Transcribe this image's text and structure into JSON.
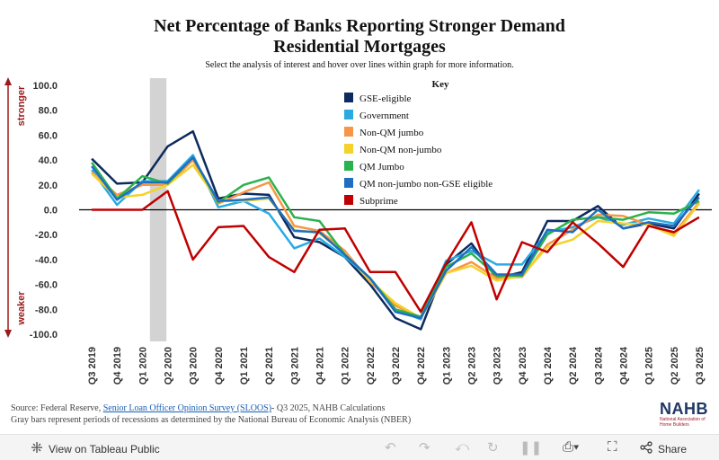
{
  "title_line1": "Net Percentage of Banks Reporting Stronger Demand",
  "title_line2": "Residential Mortgages",
  "subtitle": "Select the analysis of interest and hover over lines within graph for more information.",
  "source_prefix": "Source: Federal Reserve, ",
  "source_link": "Senior Loan Officer Opinion Survey (SLOOS)",
  "source_suffix": "- Q3 2025, NAHB Calculations",
  "source_note": "Gray bars represent periods of recessions as determined by the National Bureau of Economic Analysis (NBER)",
  "logo": {
    "mark": "NAHB",
    "text": "National Association of Home Builders"
  },
  "footer": {
    "view_label": "View on Tableau Public",
    "share_label": "Share",
    "icons": [
      "undo-icon",
      "redo-icon",
      "revert-icon",
      "refresh-icon",
      "pause-icon",
      "download-icon",
      "fullscreen-icon",
      "share-icon"
    ]
  },
  "chart_data": {
    "type": "line",
    "ylim": [
      -100,
      100
    ],
    "yticks": [
      "100.0",
      "80.0",
      "60.0",
      "40.0",
      "20.0",
      "0.0",
      "-20.0",
      "-40.0",
      "-60.0",
      "-80.0",
      "-100.0"
    ],
    "stronger_label": "stronger",
    "weaker_label": "weaker",
    "legend_title": "Key",
    "legend_position": "top-center",
    "recession": [
      "Q1 2020",
      "Q2 2020"
    ],
    "categories": [
      "Q3 2019",
      "Q4 2019",
      "Q1 2020",
      "Q2 2020",
      "Q3 2020",
      "Q4 2020",
      "Q1 2021",
      "Q2 2021",
      "Q3 2021",
      "Q4 2021",
      "Q1 2022",
      "Q2 2022",
      "Q3 2022",
      "Q4 2022",
      "Q1 2023",
      "Q2 2023",
      "Q3 2023",
      "Q4 2023",
      "Q1 2024",
      "Q2 2024",
      "Q3 2024",
      "Q4 2024",
      "Q1 2025",
      "Q2 2025",
      "Q3 2025"
    ],
    "series": [
      {
        "name": "GSE-eligible",
        "color": "#0d2b5e",
        "values": [
          41,
          21,
          22,
          51,
          63,
          9,
          13,
          12,
          -22,
          -26,
          -38,
          -60,
          -87,
          -96,
          -44,
          -27,
          -55,
          -50,
          -9,
          -9,
          3,
          -15,
          -11,
          -15,
          13
        ]
      },
      {
        "name": "Government",
        "color": "#29abe2",
        "values": [
          32,
          4,
          23,
          23,
          44,
          2,
          7,
          -3,
          -31,
          -23,
          -38,
          -55,
          -80,
          -88,
          -41,
          -33,
          -44,
          -44,
          -18,
          -14,
          -6,
          -12,
          -7,
          -11,
          16
        ]
      },
      {
        "name": "Non-QM jumbo",
        "color": "#f79646",
        "values": [
          30,
          12,
          20,
          20,
          40,
          5,
          14,
          22,
          -13,
          -17,
          -33,
          -58,
          -77,
          -87,
          -51,
          -42,
          -55,
          -54,
          -28,
          -16,
          -4,
          -5,
          -12,
          -19,
          6
        ]
      },
      {
        "name": "Non-QM non-jumbo",
        "color": "#f4d22a",
        "values": [
          29,
          10,
          12,
          20,
          36,
          7,
          7,
          9,
          -16,
          -19,
          -35,
          -57,
          -75,
          -87,
          -51,
          -45,
          -57,
          -53,
          -30,
          -24,
          -9,
          -11,
          -12,
          -21,
          5
        ]
      },
      {
        "name": "QM Jumbo",
        "color": "#2ab24c",
        "values": [
          38,
          9,
          27,
          21,
          42,
          6,
          20,
          26,
          -6,
          -9,
          -36,
          -55,
          -80,
          -86,
          -46,
          -35,
          -53,
          -53,
          -20,
          -8,
          -6,
          -8,
          -2,
          -3,
          7
        ]
      },
      {
        "name": "QM non-jumbo non-GSE eligible",
        "color": "#1f6fc1",
        "values": [
          35,
          8,
          22,
          22,
          42,
          7,
          8,
          10,
          -17,
          -18,
          -36,
          -55,
          -82,
          -87,
          -49,
          -30,
          -52,
          -52,
          -16,
          -18,
          0,
          -15,
          -10,
          -13,
          10
        ]
      },
      {
        "name": "Subprime",
        "color": "#c00000",
        "values": [
          0,
          0,
          0,
          15,
          -40,
          -14,
          -13,
          -38,
          -50,
          -16,
          -15,
          -50,
          -50,
          -82,
          -43,
          -10,
          -72,
          -26,
          -34,
          -10,
          -27,
          -46,
          -13,
          -18,
          -6
        ]
      }
    ]
  }
}
